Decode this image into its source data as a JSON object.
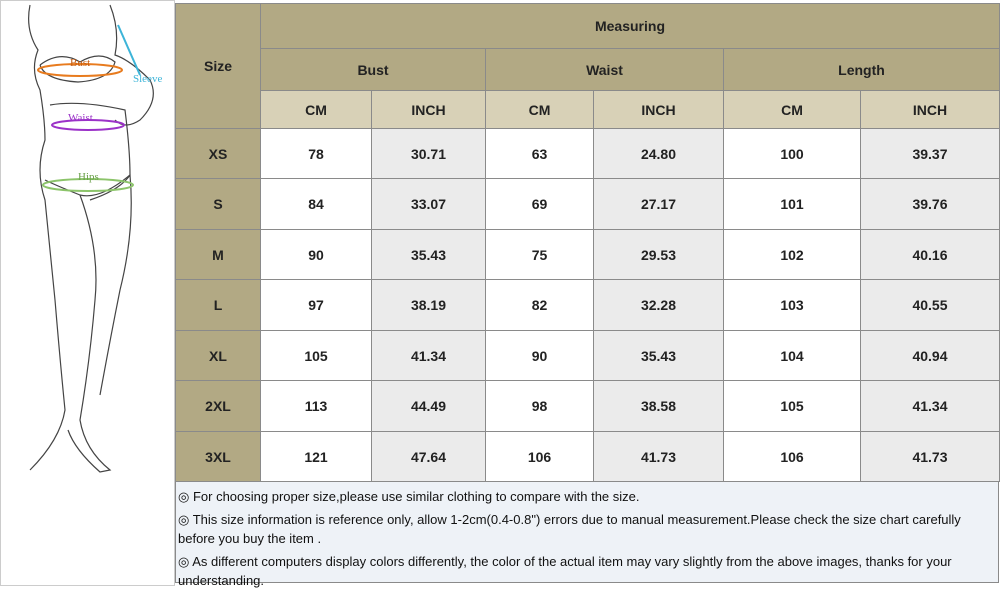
{
  "figure": {
    "labels": [
      "Bust",
      "Sleeve",
      "Waist",
      "Hips"
    ]
  },
  "table": {
    "header": {
      "size": "Size",
      "measuring": "Measuring",
      "groups": [
        "Bust",
        "Waist",
        "Length"
      ],
      "units": [
        "CM",
        "INCH",
        "CM",
        "INCH",
        "CM",
        "INCH"
      ]
    },
    "rows": [
      [
        "XS",
        "78",
        "30.71",
        "63",
        "24.80",
        "100",
        "39.37"
      ],
      [
        "S",
        "84",
        "33.07",
        "69",
        "27.17",
        "101",
        "39.76"
      ],
      [
        "M",
        "90",
        "35.43",
        "75",
        "29.53",
        "102",
        "40.16"
      ],
      [
        "L",
        "97",
        "38.19",
        "82",
        "32.28",
        "103",
        "40.55"
      ],
      [
        "XL",
        "105",
        "41.34",
        "90",
        "35.43",
        "104",
        "40.94"
      ],
      [
        "2XL",
        "113",
        "44.49",
        "98",
        "38.58",
        "105",
        "41.34"
      ],
      [
        "3XL",
        "121",
        "47.64",
        "106",
        "41.73",
        "106",
        "41.73"
      ]
    ]
  },
  "notes": [
    "◎  For choosing proper size,please use similar clothing to compare with the size.",
    "◎  This size information is reference only, allow 1-2cm(0.4-0.8\") errors due to manual measurement.Please check the size chart carefully before you buy the item .",
    "◎  As different computers display colors differently, the color of the actual item may vary slightly from the above images, thanks for your understanding."
  ]
}
